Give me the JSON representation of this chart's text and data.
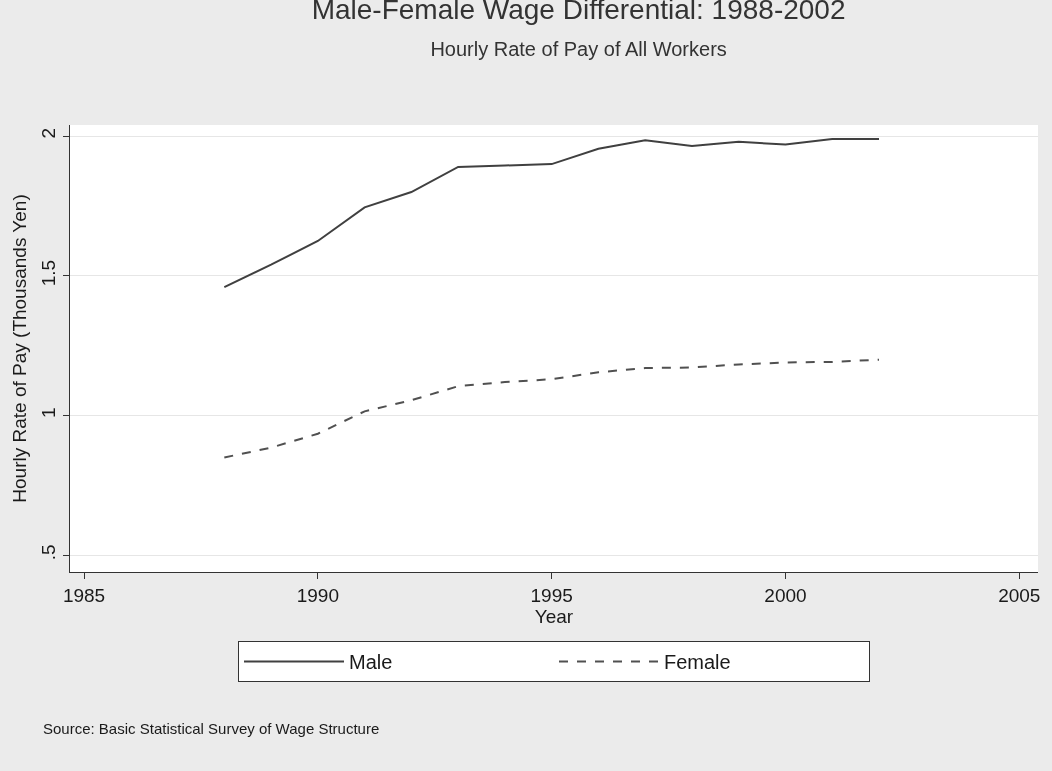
{
  "chart_data": {
    "type": "line",
    "title": "Male-Female Wage Differential: 1988-2002",
    "subtitle": "Hourly Rate of Pay of All Workers",
    "xlabel": "Year",
    "ylabel": "Hourly Rate of Pay (Thousands Yen)",
    "x": [
      1988,
      1989,
      1990,
      1991,
      1992,
      1993,
      1994,
      1995,
      1996,
      1997,
      1998,
      1999,
      2000,
      2001,
      2002
    ],
    "series": [
      {
        "name": "Male",
        "color": "#404040",
        "line_style": "solid",
        "values": [
          1.46,
          1.54,
          1.625,
          1.745,
          1.8,
          1.89,
          1.895,
          1.9,
          1.955,
          1.985,
          1.965,
          1.98,
          1.97,
          1.99,
          1.99
        ]
      },
      {
        "name": "Female",
        "color": "#505050",
        "line_style": "dashed",
        "values": [
          0.85,
          0.885,
          0.935,
          1.015,
          1.055,
          1.105,
          1.12,
          1.13,
          1.155,
          1.17,
          1.172,
          1.183,
          1.19,
          1.192,
          1.2
        ]
      }
    ],
    "xlim": [
      1984.7,
      2005.4
    ],
    "xticks": [
      1985,
      1990,
      1995,
      2000,
      2005
    ],
    "ylim": [
      0.44,
      2.04
    ],
    "yticks": [
      {
        "value": 0.5,
        "label": ".5"
      },
      1,
      1.5,
      2
    ],
    "grid": "y",
    "legend": "bottom",
    "marker": "none",
    "annotations": [
      "Source: Basic Statistical Survey of Wage Structure"
    ]
  }
}
